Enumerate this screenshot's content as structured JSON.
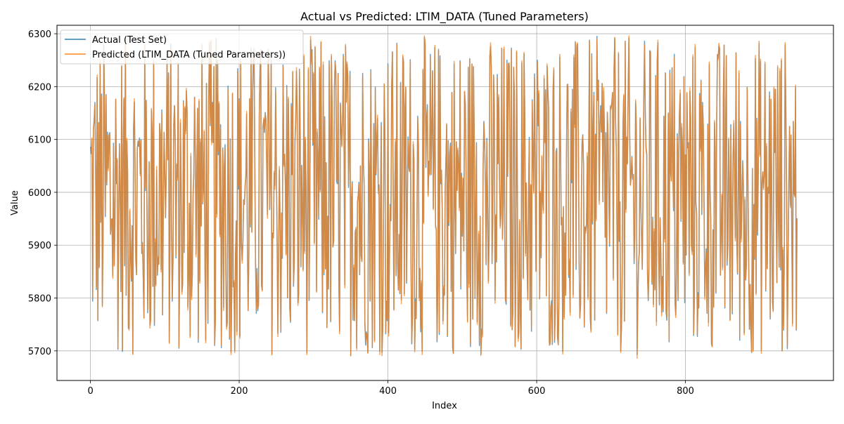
{
  "chart_data": {
    "type": "line",
    "title": "Actual vs Predicted: LTIM_DATA (Tuned Parameters)",
    "xlabel": "Index",
    "ylabel": "Value",
    "xlim": [
      -45,
      999
    ],
    "ylim": [
      5644,
      6316
    ],
    "x_ticks": [
      0,
      200,
      400,
      600,
      800
    ],
    "y_ticks": [
      5700,
      5800,
      5900,
      6000,
      6100,
      6200,
      6300
    ],
    "grid": true,
    "legend_position": "upper-left",
    "n_points": 951,
    "series": [
      {
        "name": "Actual (Test Set)",
        "color": "#1f77b4",
        "opacity": 0.7,
        "values": []
      },
      {
        "name": "Predicted (LTIM_DATA (Tuned Parameters))",
        "color": "#ff7f0e",
        "opacity": 0.7,
        "values": []
      }
    ]
  }
}
